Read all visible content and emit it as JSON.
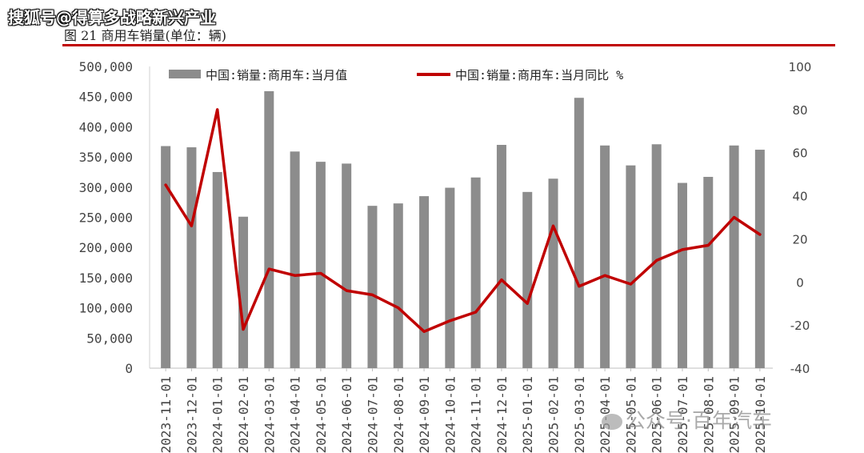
{
  "watermark_top": "搜狐号@得算多战略新兴产业",
  "figure_title": "图 21 商用车销量(单位：辆)",
  "watermark_bottom": "公众号·百年汽车",
  "colors": {
    "bar": "#8c8c8c",
    "line": "#c00000",
    "rule": "#c00000"
  },
  "chart_data": {
    "type": "bar",
    "categories": [
      "2023-11-01",
      "2023-12-01",
      "2024-01-01",
      "2024-02-01",
      "2024-03-01",
      "2024-04-01",
      "2024-05-01",
      "2024-06-01",
      "2024-07-01",
      "2024-08-01",
      "2024-09-01",
      "2024-10-01",
      "2024-11-01",
      "2024-12-01",
      "2025-01-01",
      "2025-02-01",
      "2025-03-01",
      "2025-04-01",
      "2025-05-01",
      "2025-06-01",
      "2025-07-01",
      "2025-08-01",
      "2025-09-01",
      "2025-10-01"
    ],
    "series": [
      {
        "name": "中国:销量:商用车:当月值",
        "type": "bar",
        "axis": "left",
        "values": [
          368000,
          366000,
          325000,
          251000,
          459000,
          359000,
          342000,
          339000,
          269000,
          273000,
          285000,
          299000,
          316000,
          370000,
          292000,
          314000,
          448000,
          369000,
          336000,
          371000,
          307000,
          317000,
          369000,
          362000
        ]
      },
      {
        "name": "中国:销量:商用车:当月同比 %",
        "type": "line",
        "axis": "right",
        "values": [
          45,
          26,
          80,
          -22,
          6,
          3,
          4,
          -4,
          -6,
          -12,
          -23,
          -18,
          -14,
          1,
          -10,
          26,
          -2,
          3,
          -1,
          10,
          15,
          17,
          30,
          22
        ]
      }
    ],
    "y_left": {
      "min": 0,
      "max": 500000,
      "step": 50000,
      "tick_labels": [
        "0",
        "50,000",
        "100,000",
        "150,000",
        "200,000",
        "250,000",
        "300,000",
        "350,000",
        "400,000",
        "450,000",
        "500,000"
      ]
    },
    "y_right": {
      "min": -40,
      "max": 100,
      "step": 20,
      "tick_labels": [
        "-40",
        "-20",
        "0",
        "20",
        "40",
        "60",
        "80",
        "100"
      ]
    },
    "x_tick_labels": [
      "2023-11-01",
      "2023-12-01",
      "2024-01-01",
      "2024-02-01",
      "2024-03-01",
      "2024-04-01",
      "2024-05-01",
      "2024-06-01",
      "2024-07-01",
      "2024-08-01",
      "2024-09-01",
      "2024-10-01",
      "2024-11-01",
      "2024-12-01",
      "2025-01-01",
      "2025-02-01",
      "2025-03-01",
      "2025-04-01",
      "2025-05-01",
      "2025-06-01",
      "2025-07-01",
      "2025-08-01",
      "2025-09-01",
      "2025-10-01"
    ],
    "legend": [
      "中国:销量:商用车:当月值",
      "中国:销量:商用车:当月同比 %"
    ],
    "legend_position": "top",
    "grid": false
  }
}
